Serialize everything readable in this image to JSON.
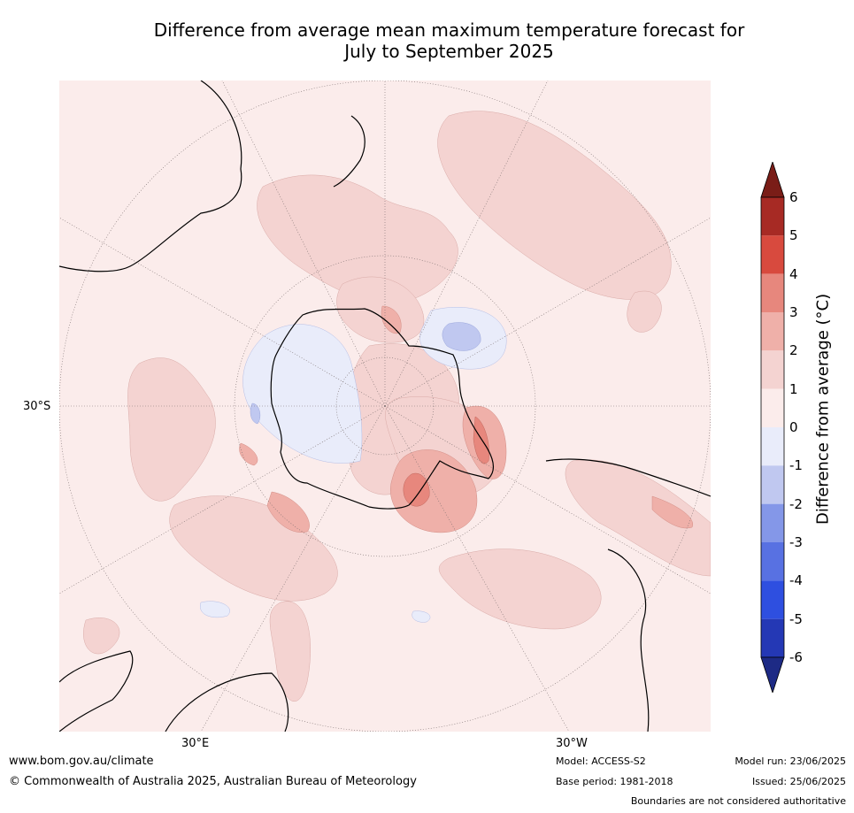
{
  "title_line1": "Difference from average mean maximum temperature forecast for",
  "title_line2": "July to September 2025",
  "map": {
    "projection": "south-polar stereographic",
    "lat_label": "30°S",
    "lon_labels": [
      "30°E",
      "30°W"
    ],
    "ocean_base_color": "#fbeceb"
  },
  "colorbar": {
    "label": "Difference from average (°C)",
    "ticks": [
      "6",
      "5",
      "4",
      "3",
      "2",
      "1",
      "0",
      "-1",
      "-2",
      "-3",
      "-4",
      "-5",
      "-6"
    ],
    "colors": [
      "#a72a24",
      "#d84a3e",
      "#e7877d",
      "#efb0a9",
      "#f4d3d1",
      "#fbeceb",
      "#e9ecfa",
      "#c0c8f0",
      "#8497e8",
      "#5871e2",
      "#2e4fe0",
      "#2438b5"
    ],
    "extend_max_color": "#7a1d17",
    "extend_min_color": "#1d2a85"
  },
  "footer": {
    "website": "www.bom.gov.au/climate",
    "copyright": "© Commonwealth of Australia 2025, Australian Bureau of Meteorology",
    "model": "Model: ACCESS-S2",
    "base_period": "Base period: 1981-2018",
    "model_run": "Model run: 23/06/2025",
    "issued": "Issued: 25/06/2025",
    "disclaimer": "Boundaries are not considered authoritative"
  }
}
